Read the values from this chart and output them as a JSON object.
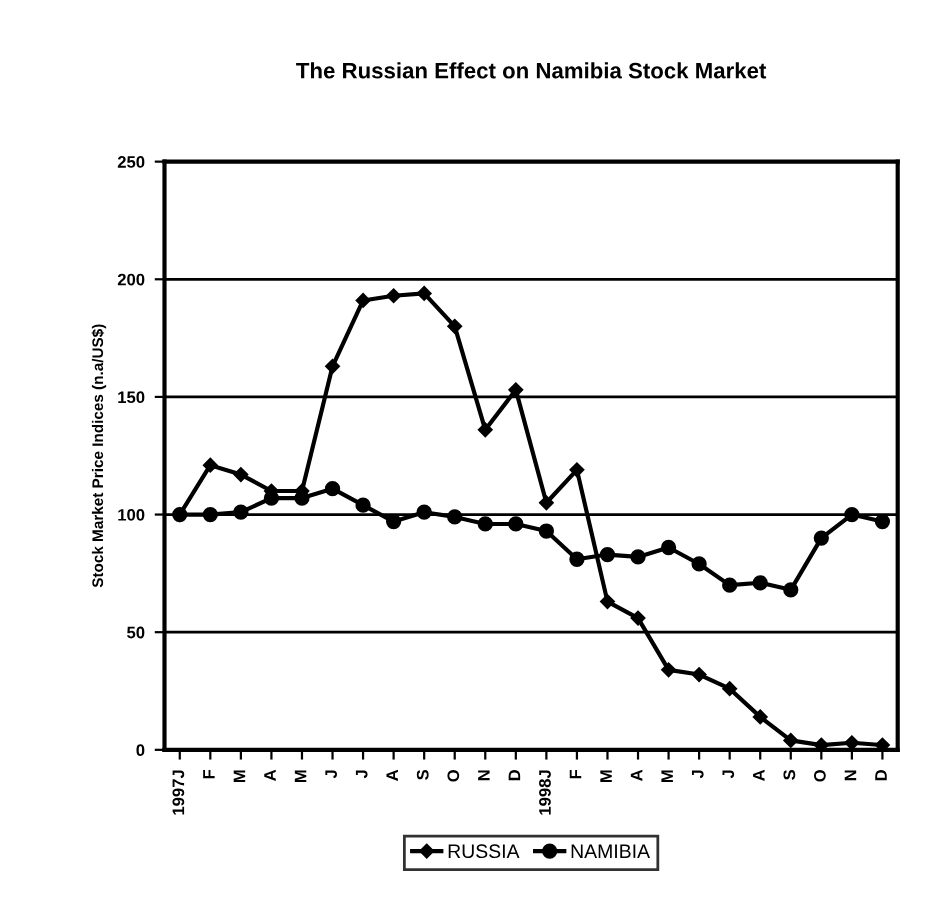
{
  "chart_data": {
    "type": "line",
    "title": "The Russian Effect on Namibia Stock Market",
    "ylabel": "Stock Market Price Indices (n.a/US$)",
    "categories": [
      "1997J",
      "F",
      "M",
      "A",
      "M",
      "J",
      "J",
      "A",
      "S",
      "O",
      "N",
      "D",
      "1998J",
      "F",
      "M",
      "A",
      "M",
      "J",
      "J",
      "A",
      "S",
      "O",
      "N",
      "D"
    ],
    "series": [
      {
        "name": "RUSSIA",
        "color": "#000000",
        "marker": "diamond",
        "values": [
          100,
          121,
          117,
          110,
          110,
          163,
          191,
          193,
          194,
          180,
          136,
          153,
          105,
          119,
          63,
          56,
          34,
          32,
          26,
          14,
          4,
          2,
          3,
          2
        ]
      },
      {
        "name": "NAMIBIA",
        "color": "#000000",
        "marker": "circle",
        "values": [
          100,
          100,
          101,
          107,
          107,
          111,
          104,
          97,
          101,
          99,
          96,
          96,
          93,
          81,
          83,
          82,
          86,
          79,
          70,
          71,
          68,
          90,
          100,
          97
        ]
      }
    ],
    "ylim": [
      0,
      250
    ],
    "yticks": [
      0,
      50,
      100,
      150,
      200,
      250
    ],
    "grid": "y",
    "legend": "bottom",
    "line_style": "solid"
  }
}
